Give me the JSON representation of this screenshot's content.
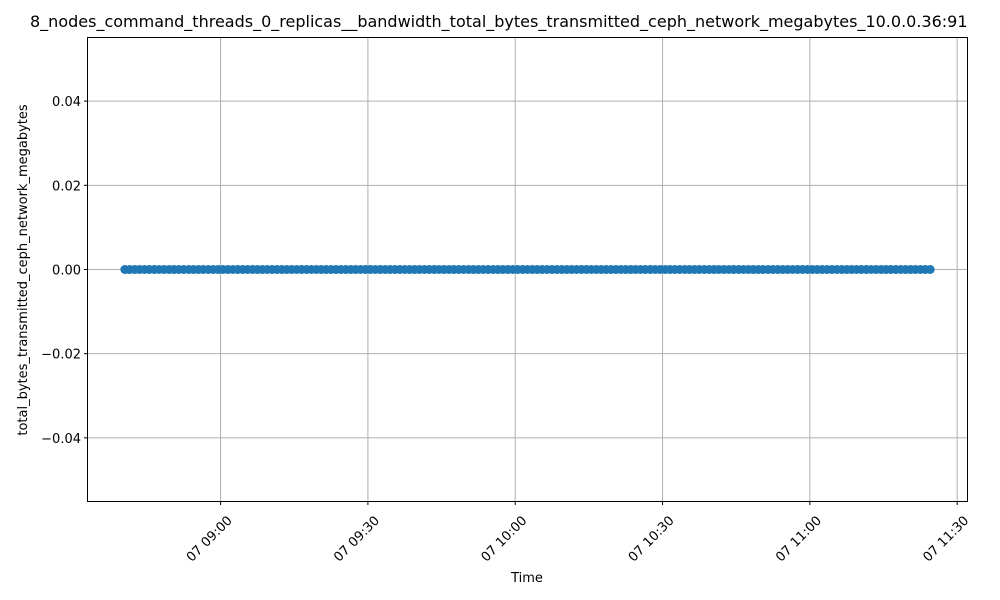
{
  "chart_data": {
    "type": "scatter",
    "title": "8_nodes_command_threads_0_replicas__bandwidth_total_bytes_transmitted_ceph_network_megabytes_10.0.0.36:91",
    "xlabel": "Time",
    "ylabel": "total_bytes_transmitted_ceph_network_megabytes",
    "x_range": [
      "2024-01-07T08:33:00",
      "2024-01-07T11:32:00"
    ],
    "ylim": [
      -0.055,
      0.055
    ],
    "x_ticks": [
      {
        "value": "2024-01-07T09:00:00",
        "label": "07 09:00"
      },
      {
        "value": "2024-01-07T09:30:00",
        "label": "07 09:30"
      },
      {
        "value": "2024-01-07T10:00:00",
        "label": "07 10:00"
      },
      {
        "value": "2024-01-07T10:30:00",
        "label": "07 10:30"
      },
      {
        "value": "2024-01-07T11:00:00",
        "label": "07 11:00"
      },
      {
        "value": "2024-01-07T11:30:00",
        "label": "07 11:30"
      }
    ],
    "y_ticks": [
      {
        "value": 0.04,
        "label": "0.04"
      },
      {
        "value": 0.02,
        "label": "0.02"
      },
      {
        "value": 0.0,
        "label": "0.00"
      },
      {
        "value": -0.02,
        "label": "−0.02"
      },
      {
        "value": -0.04,
        "label": "−0.04"
      }
    ],
    "grid": true,
    "marker_color": "#1f77b4",
    "series": [
      {
        "x_start": "2024-01-07T08:40:30",
        "x_end": "2024-01-07T11:24:30",
        "interval_minutes": 1,
        "y_constant": 0
      }
    ]
  }
}
